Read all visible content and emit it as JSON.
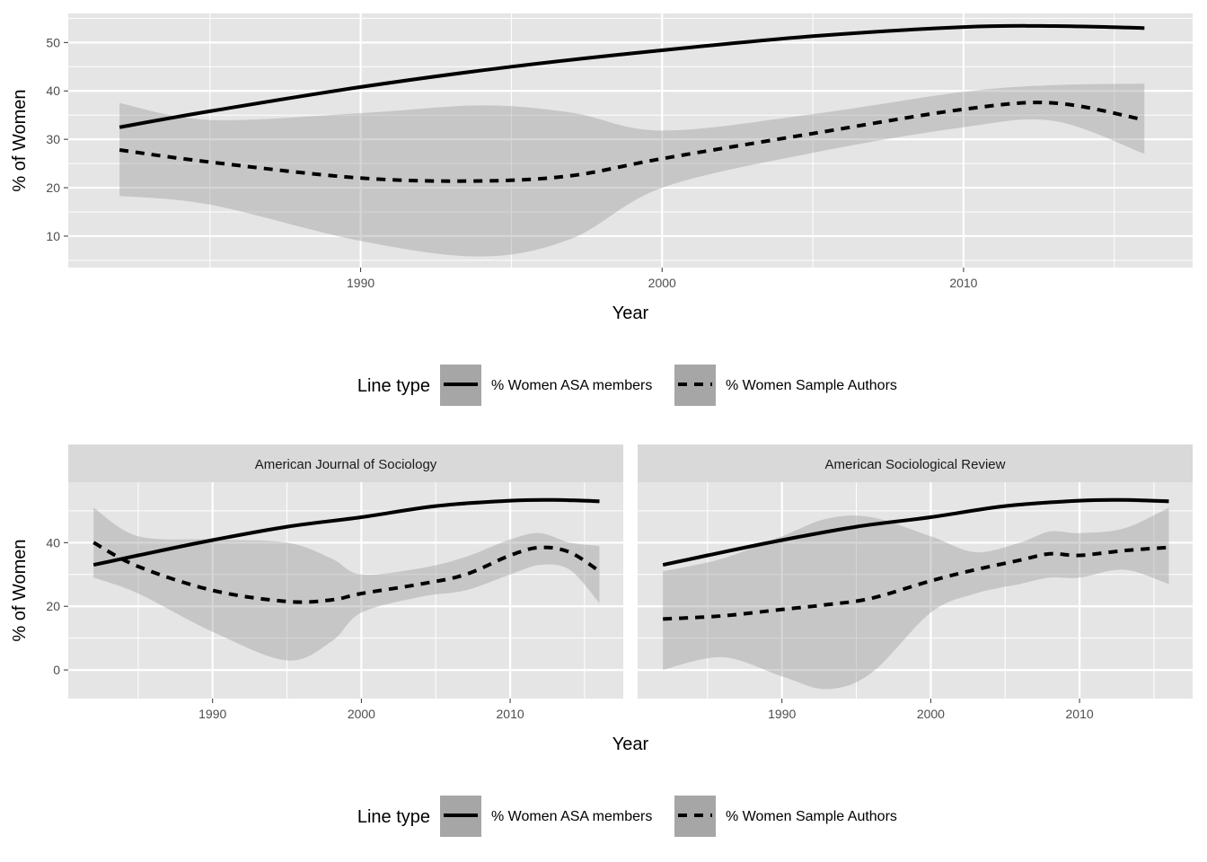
{
  "legend": {
    "title": "Line type",
    "items": [
      {
        "label": "% Women ASA members",
        "dash": "solid"
      },
      {
        "label": "% Women Sample Authors",
        "dash": "dashed"
      }
    ],
    "placement": "bottom"
  },
  "colors": {
    "panel_background": "#e5e5e5",
    "grid": "#ffffff",
    "strip_background": "#d9d9d9",
    "ribbon": "#999999",
    "legend_key": "#a6a6a6",
    "line": "#000000"
  },
  "chart_data": [
    {
      "type": "line",
      "title": "",
      "xlabel": "Year",
      "ylabel": "% of Women",
      "xlim": [
        1980.3,
        2017.6
      ],
      "ylim": [
        3.5,
        56.0
      ],
      "x_ticks": [
        1990,
        2000,
        2010
      ],
      "y_ticks": [
        10,
        20,
        30,
        40,
        50
      ],
      "grid": true,
      "series": [
        {
          "name": "% Women ASA members",
          "dash": "solid",
          "x": [
            1982,
            1985,
            1990,
            1995,
            2000,
            2005,
            2010,
            2013,
            2016
          ],
          "y": [
            32.5,
            35.8,
            40.8,
            45,
            48.4,
            51.3,
            53.2,
            53.4,
            53.0
          ],
          "lower": [
            32.2,
            35.6,
            40.6,
            44.8,
            48.2,
            51.1,
            53.0,
            53.2,
            52.7
          ],
          "upper": [
            32.8,
            36.0,
            41.0,
            45.2,
            48.6,
            51.5,
            53.4,
            53.6,
            53.3
          ]
        },
        {
          "name": "% Women Sample Authors",
          "dash": "dashed",
          "x": [
            1982,
            1985,
            1990,
            1994,
            1997,
            2000,
            2005,
            2010,
            2013,
            2016
          ],
          "y": [
            27.8,
            25.3,
            22,
            21.4,
            22.5,
            26,
            31.2,
            36.2,
            37.5,
            34.0
          ],
          "lower": [
            18.3,
            16.5,
            9,
            5.8,
            9.5,
            20,
            27.2,
            32.5,
            33.8,
            27.0
          ],
          "upper": [
            37.5,
            34.0,
            35.4,
            37,
            35.5,
            31.8,
            35.2,
            39.8,
            41.2,
            41.5
          ]
        }
      ]
    },
    {
      "type": "line",
      "title": "American Journal of Sociology",
      "xlabel": "Year",
      "ylabel": "% of Women",
      "xlim": [
        1980.3,
        2017.6
      ],
      "ylim": [
        -9,
        59
      ],
      "x_ticks": [
        1990,
        2000,
        2010
      ],
      "y_ticks": [
        0,
        20,
        40
      ],
      "grid": true,
      "series": [
        {
          "name": "% Women ASA members",
          "dash": "solid",
          "x": [
            1982,
            1985,
            1990,
            1995,
            2000,
            2005,
            2010,
            2013,
            2016
          ],
          "y": [
            33,
            36,
            40.8,
            45,
            48,
            51.5,
            53.2,
            53.4,
            53
          ],
          "lower": [
            32.4,
            35.4,
            40.2,
            44.4,
            47.4,
            50.9,
            52.6,
            52.8,
            52.3
          ],
          "upper": [
            33.6,
            36.6,
            41.4,
            45.6,
            48.6,
            52.1,
            53.8,
            54.0,
            53.7
          ]
        },
        {
          "name": "% Women Sample Authors",
          "dash": "dashed",
          "x": [
            1982,
            1985,
            1990,
            1995,
            1998,
            2000,
            2004,
            2007,
            2010,
            2012,
            2014,
            2016
          ],
          "y": [
            40,
            32.5,
            25,
            21.5,
            22,
            24,
            27,
            30,
            36,
            38.5,
            37,
            31
          ],
          "lower": [
            29,
            24,
            12,
            3,
            9,
            18,
            23,
            25,
            30,
            33,
            31.5,
            21
          ],
          "upper": [
            51,
            42,
            41,
            40,
            35,
            30,
            32,
            35.5,
            41,
            43,
            40,
            39
          ]
        }
      ]
    },
    {
      "type": "line",
      "title": "American Sociological Review",
      "xlabel": "Year",
      "ylabel": "% of Women",
      "xlim": [
        1980.3,
        2017.6
      ],
      "ylim": [
        -9,
        59
      ],
      "x_ticks": [
        1990,
        2000,
        2010
      ],
      "y_ticks": [
        0,
        20,
        40
      ],
      "grid": true,
      "series": [
        {
          "name": "% Women ASA members",
          "dash": "solid",
          "x": [
            1982,
            1985,
            1990,
            1995,
            2000,
            2005,
            2010,
            2013,
            2016
          ],
          "y": [
            33,
            36,
            40.8,
            45,
            48,
            51.5,
            53.2,
            53.4,
            53
          ],
          "lower": [
            32.4,
            35.4,
            40.2,
            44.4,
            47.4,
            50.9,
            52.6,
            52.8,
            52.3
          ],
          "upper": [
            33.6,
            36.6,
            41.4,
            45.6,
            48.6,
            52.1,
            53.8,
            54.0,
            53.7
          ]
        },
        {
          "name": "% Women Sample Authors",
          "dash": "dashed",
          "x": [
            1982,
            1986,
            1990,
            1993,
            1996,
            2000,
            2003,
            2006,
            2008,
            2010,
            2013,
            2016
          ],
          "y": [
            16,
            17,
            19,
            20.5,
            22.5,
            28,
            31.5,
            34.5,
            36.5,
            36,
            37.5,
            38.5
          ],
          "lower": [
            0,
            4,
            -2,
            -6,
            -1,
            18,
            24,
            27,
            29,
            29,
            31.5,
            27
          ],
          "upper": [
            31,
            35,
            42,
            47.5,
            48,
            42,
            37,
            40,
            43.5,
            43,
            44.5,
            51
          ]
        }
      ]
    }
  ]
}
